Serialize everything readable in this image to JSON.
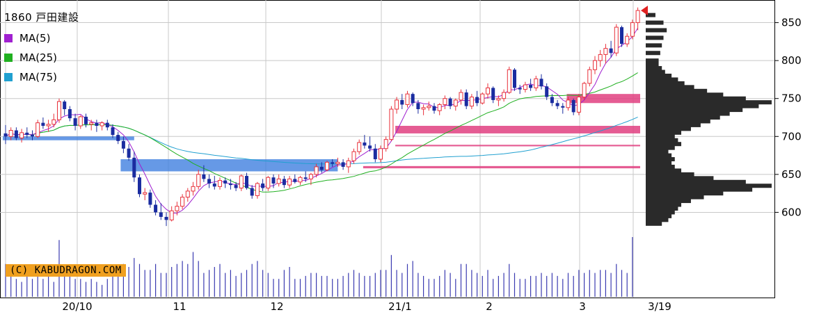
{
  "chart_data": {
    "type": "candlestick",
    "title": "1860 戸田建設",
    "watermark": "(C) KABUDRAGON.COM",
    "legend": [
      {
        "name": "MA(5)",
        "color": "#a020d0"
      },
      {
        "name": "MA(25)",
        "color": "#20b020"
      },
      {
        "name": "MA(75)",
        "color": "#20a0d0"
      }
    ],
    "x_tick_labels": [
      "20/10",
      "11",
      "12",
      "21/1",
      "2",
      "3",
      "3/19"
    ],
    "y_ticks": [
      600,
      650,
      700,
      750,
      800,
      850
    ],
    "ylim": [
      572,
      878
    ],
    "grid": true,
    "colors": {
      "up": "#e8303a",
      "down": "#1a2ca0",
      "even": "#107030",
      "volume": "#3a3ab0",
      "resistance": "#e04080",
      "support": "#4080e0",
      "profile": "#2a2a2a",
      "last_marker": "#e02020"
    },
    "ohlc": [
      [
        704,
        715,
        690,
        700
      ],
      [
        700,
        712,
        695,
        708
      ],
      [
        708,
        712,
        695,
        698
      ],
      [
        698,
        710,
        692,
        705
      ],
      [
        705,
        712,
        698,
        702
      ],
      [
        702,
        708,
        695,
        700
      ],
      [
        700,
        722,
        698,
        718
      ],
      [
        718,
        725,
        710,
        714
      ],
      [
        714,
        722,
        706,
        716
      ],
      [
        716,
        730,
        712,
        722
      ],
      [
        722,
        750,
        718,
        746
      ],
      [
        746,
        748,
        728,
        736
      ],
      [
        736,
        740,
        720,
        724
      ],
      [
        724,
        730,
        708,
        714
      ],
      [
        714,
        728,
        710,
        726
      ],
      [
        726,
        730,
        712,
        716
      ],
      [
        716,
        722,
        708,
        718
      ],
      [
        718,
        722,
        706,
        714
      ],
      [
        714,
        720,
        708,
        718
      ],
      [
        718,
        722,
        708,
        712
      ],
      [
        712,
        716,
        698,
        702
      ],
      [
        702,
        706,
        690,
        694
      ],
      [
        694,
        700,
        678,
        684
      ],
      [
        684,
        690,
        668,
        672
      ],
      [
        672,
        680,
        640,
        646
      ],
      [
        646,
        650,
        620,
        624
      ],
      [
        624,
        632,
        616,
        626
      ],
      [
        626,
        630,
        606,
        610
      ],
      [
        610,
        616,
        596,
        600
      ],
      [
        600,
        612,
        590,
        594
      ],
      [
        594,
        600,
        582,
        590
      ],
      [
        590,
        608,
        588,
        602
      ],
      [
        602,
        614,
        596,
        608
      ],
      [
        608,
        624,
        604,
        620
      ],
      [
        620,
        632,
        614,
        628
      ],
      [
        628,
        640,
        622,
        634
      ],
      [
        634,
        656,
        630,
        650
      ],
      [
        650,
        662,
        640,
        644
      ],
      [
        644,
        650,
        632,
        638
      ],
      [
        638,
        648,
        630,
        634
      ],
      [
        634,
        646,
        630,
        642
      ],
      [
        642,
        646,
        632,
        638
      ],
      [
        638,
        644,
        630,
        636
      ],
      [
        636,
        640,
        628,
        632
      ],
      [
        632,
        650,
        628,
        648
      ],
      [
        648,
        652,
        630,
        632
      ],
      [
        632,
        636,
        618,
        622
      ],
      [
        622,
        640,
        618,
        638
      ],
      [
        638,
        644,
        628,
        632
      ],
      [
        632,
        648,
        628,
        646
      ],
      [
        646,
        650,
        632,
        638
      ],
      [
        638,
        650,
        634,
        644
      ],
      [
        644,
        648,
        632,
        636
      ],
      [
        636,
        648,
        632,
        644
      ],
      [
        644,
        650,
        638,
        640
      ],
      [
        640,
        648,
        636,
        646
      ],
      [
        646,
        654,
        640,
        644
      ],
      [
        644,
        652,
        636,
        650
      ],
      [
        650,
        664,
        646,
        660
      ],
      [
        660,
        666,
        652,
        656
      ],
      [
        656,
        668,
        654,
        666
      ],
      [
        666,
        670,
        660,
        664
      ],
      [
        664,
        672,
        660,
        666
      ],
      [
        666,
        670,
        656,
        660
      ],
      [
        660,
        672,
        652,
        668
      ],
      [
        668,
        684,
        664,
        680
      ],
      [
        680,
        696,
        676,
        692
      ],
      [
        692,
        702,
        684,
        688
      ],
      [
        688,
        700,
        680,
        684
      ],
      [
        684,
        690,
        666,
        670
      ],
      [
        670,
        688,
        666,
        684
      ],
      [
        684,
        700,
        680,
        696
      ],
      [
        696,
        740,
        694,
        736
      ],
      [
        736,
        752,
        730,
        748
      ],
      [
        748,
        756,
        736,
        742
      ],
      [
        742,
        760,
        738,
        756
      ],
      [
        756,
        758,
        740,
        744
      ],
      [
        744,
        748,
        730,
        736
      ],
      [
        736,
        742,
        728,
        738
      ],
      [
        738,
        746,
        734,
        740
      ],
      [
        740,
        744,
        730,
        734
      ],
      [
        734,
        744,
        728,
        742
      ],
      [
        742,
        754,
        736,
        750
      ],
      [
        750,
        752,
        736,
        740
      ],
      [
        740,
        750,
        734,
        748
      ],
      [
        748,
        762,
        742,
        758
      ],
      [
        758,
        762,
        736,
        740
      ],
      [
        740,
        756,
        736,
        752
      ],
      [
        752,
        760,
        740,
        744
      ],
      [
        744,
        758,
        742,
        756
      ],
      [
        756,
        770,
        750,
        764
      ],
      [
        764,
        766,
        744,
        748
      ],
      [
        748,
        754,
        740,
        750
      ],
      [
        750,
        762,
        746,
        758
      ],
      [
        758,
        792,
        756,
        788
      ],
      [
        788,
        790,
        760,
        764
      ],
      [
        764,
        768,
        756,
        762
      ],
      [
        762,
        772,
        758,
        768
      ],
      [
        768,
        776,
        760,
        764
      ],
      [
        764,
        780,
        760,
        776
      ],
      [
        776,
        782,
        762,
        766
      ],
      [
        766,
        770,
        748,
        752
      ],
      [
        752,
        756,
        740,
        744
      ],
      [
        744,
        748,
        736,
        740
      ],
      [
        740,
        744,
        730,
        738
      ],
      [
        738,
        752,
        734,
        748
      ],
      [
        748,
        750,
        728,
        732
      ],
      [
        732,
        756,
        728,
        752
      ],
      [
        752,
        772,
        748,
        770
      ],
      [
        770,
        792,
        766,
        788
      ],
      [
        788,
        806,
        782,
        800
      ],
      [
        800,
        814,
        792,
        808
      ],
      [
        808,
        822,
        796,
        816
      ],
      [
        816,
        826,
        804,
        810
      ],
      [
        810,
        848,
        806,
        844
      ],
      [
        844,
        846,
        818,
        822
      ],
      [
        822,
        836,
        818,
        832
      ],
      [
        832,
        854,
        828,
        850
      ],
      [
        850,
        870,
        840,
        866
      ]
    ],
    "volume_relative": [
      0.55,
      0.35,
      0.3,
      0.25,
      0.4,
      0.3,
      0.35,
      0.3,
      0.4,
      0.25,
      0.95,
      0.45,
      0.35,
      0.3,
      0.3,
      0.25,
      0.3,
      0.25,
      0.2,
      0.3,
      0.35,
      0.4,
      0.55,
      0.5,
      0.65,
      0.55,
      0.45,
      0.45,
      0.55,
      0.4,
      0.4,
      0.5,
      0.55,
      0.6,
      0.55,
      0.75,
      0.6,
      0.4,
      0.45,
      0.5,
      0.55,
      0.4,
      0.45,
      0.35,
      0.4,
      0.45,
      0.55,
      0.6,
      0.45,
      0.4,
      0.3,
      0.3,
      0.45,
      0.5,
      0.3,
      0.3,
      0.35,
      0.4,
      0.4,
      0.35,
      0.35,
      0.3,
      0.3,
      0.35,
      0.4,
      0.45,
      0.4,
      0.35,
      0.35,
      0.4,
      0.45,
      0.45,
      0.7,
      0.45,
      0.4,
      0.55,
      0.6,
      0.4,
      0.35,
      0.3,
      0.3,
      0.35,
      0.45,
      0.4,
      0.3,
      0.55,
      0.55,
      0.45,
      0.4,
      0.35,
      0.45,
      0.3,
      0.35,
      0.4,
      0.55,
      0.4,
      0.3,
      0.3,
      0.35,
      0.35,
      0.4,
      0.35,
      0.4,
      0.35,
      0.3,
      0.4,
      0.35,
      0.45,
      0.4,
      0.45,
      0.4,
      0.45,
      0.45,
      0.4,
      0.55,
      0.45,
      0.4,
      1.0
    ],
    "resistance_zones": [
      {
        "y0": 744,
        "y1": 756,
        "from_index": 105
      },
      {
        "y0": 704,
        "y1": 714,
        "from_index": 73
      },
      {
        "y0": 687,
        "y1": 689,
        "from_index": 73
      },
      {
        "y0": 658,
        "y1": 661,
        "from_index": 67
      }
    ],
    "support_zones": [
      {
        "y0": 654,
        "y1": 670,
        "from_index": 22,
        "to_index": 62
      },
      {
        "y0": 695,
        "y1": 700,
        "from_index": 0,
        "to_index": 24
      }
    ],
    "volume_profile": [
      [
        585,
        0.1
      ],
      [
        590,
        0.14
      ],
      [
        595,
        0.16
      ],
      [
        600,
        0.18
      ],
      [
        605,
        0.2
      ],
      [
        610,
        0.22
      ],
      [
        615,
        0.28
      ],
      [
        620,
        0.36
      ],
      [
        625,
        0.48
      ],
      [
        630,
        0.66
      ],
      [
        635,
        0.78
      ],
      [
        640,
        0.62
      ],
      [
        645,
        0.42
      ],
      [
        650,
        0.3
      ],
      [
        655,
        0.22
      ],
      [
        660,
        0.18
      ],
      [
        665,
        0.16
      ],
      [
        670,
        0.18
      ],
      [
        675,
        0.16
      ],
      [
        680,
        0.14
      ],
      [
        685,
        0.18
      ],
      [
        690,
        0.22
      ],
      [
        695,
        0.2
      ],
      [
        700,
        0.18
      ],
      [
        705,
        0.22
      ],
      [
        710,
        0.28
      ],
      [
        715,
        0.34
      ],
      [
        720,
        0.4
      ],
      [
        725,
        0.46
      ],
      [
        730,
        0.52
      ],
      [
        735,
        0.6
      ],
      [
        740,
        0.7
      ],
      [
        745,
        0.78
      ],
      [
        750,
        0.62
      ],
      [
        755,
        0.48
      ],
      [
        760,
        0.38
      ],
      [
        765,
        0.3
      ],
      [
        770,
        0.24
      ],
      [
        775,
        0.2
      ],
      [
        780,
        0.16
      ],
      [
        785,
        0.12
      ],
      [
        790,
        0.1
      ],
      [
        795,
        0.08
      ],
      [
        800,
        0.08
      ],
      [
        810,
        0.09
      ],
      [
        820,
        0.1
      ],
      [
        830,
        0.11
      ],
      [
        840,
        0.13
      ],
      [
        850,
        0.11
      ],
      [
        860,
        0.06
      ]
    ]
  }
}
